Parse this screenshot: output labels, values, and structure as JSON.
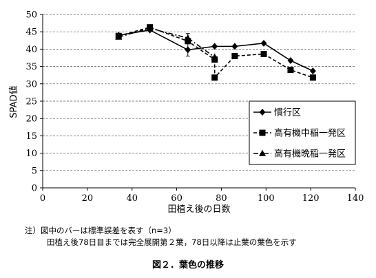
{
  "chart_data": {
    "type": "line",
    "xlabel": "田植え後の日数",
    "ylabel": "SPAD値",
    "xlim": [
      0,
      140
    ],
    "ylim": [
      0,
      50
    ],
    "xticks": [
      0,
      20,
      40,
      60,
      80,
      100,
      120,
      140
    ],
    "yticks": [
      0,
      5,
      10,
      15,
      20,
      25,
      30,
      35,
      40,
      45,
      50
    ],
    "grid": "horizontal dashed",
    "legend_position": "right",
    "series": [
      {
        "name": "慣行区",
        "marker": "diamond",
        "line": "solid",
        "points": [
          {
            "x": 34,
            "y": 44.0
          },
          {
            "x": 48,
            "y": 45.5
          },
          {
            "x": 65,
            "y": 39.8
          },
          {
            "x": 77,
            "y": 40.8
          },
          {
            "x": 86,
            "y": 40.8
          },
          {
            "x": 99,
            "y": 41.7
          },
          {
            "x": 111,
            "y": 36.7
          },
          {
            "x": 121,
            "y": 33.7
          }
        ]
      },
      {
        "name": "高有機中稲一発区",
        "marker": "square",
        "line": "dashed",
        "points": [
          {
            "x": 34,
            "y": 43.8
          },
          {
            "x": 48,
            "y": 46.3
          },
          {
            "x": 65,
            "y": 42.3
          },
          {
            "x": 77,
            "y": 37.0
          },
          {
            "x": 77,
            "y": 31.8
          },
          {
            "x": 86,
            "y": 38.0
          },
          {
            "x": 99,
            "y": 38.6
          },
          {
            "x": 111,
            "y": 34.0
          },
          {
            "x": 121,
            "y": 31.8
          }
        ]
      },
      {
        "name": "高有機晩稲一発区",
        "marker": "triangle",
        "line": "dash-dot",
        "points": [
          {
            "x": 34,
            "y": 43.5
          },
          {
            "x": 48,
            "y": 46.0
          },
          {
            "x": 65,
            "y": 43.2
          },
          {
            "x": 77,
            "y": 37.7
          }
        ]
      }
    ],
    "error_bars": [
      {
        "x": 65,
        "y": 42.3,
        "low": 38.0,
        "high": 44.5
      }
    ]
  },
  "notes": [
    "注）図中のバーは標準誤差を表す（n=3）",
    "田植え後78日目までは完全展開第２葉，78日以降は止葉の葉色を示す"
  ],
  "caption": "図２．葉色の推移"
}
